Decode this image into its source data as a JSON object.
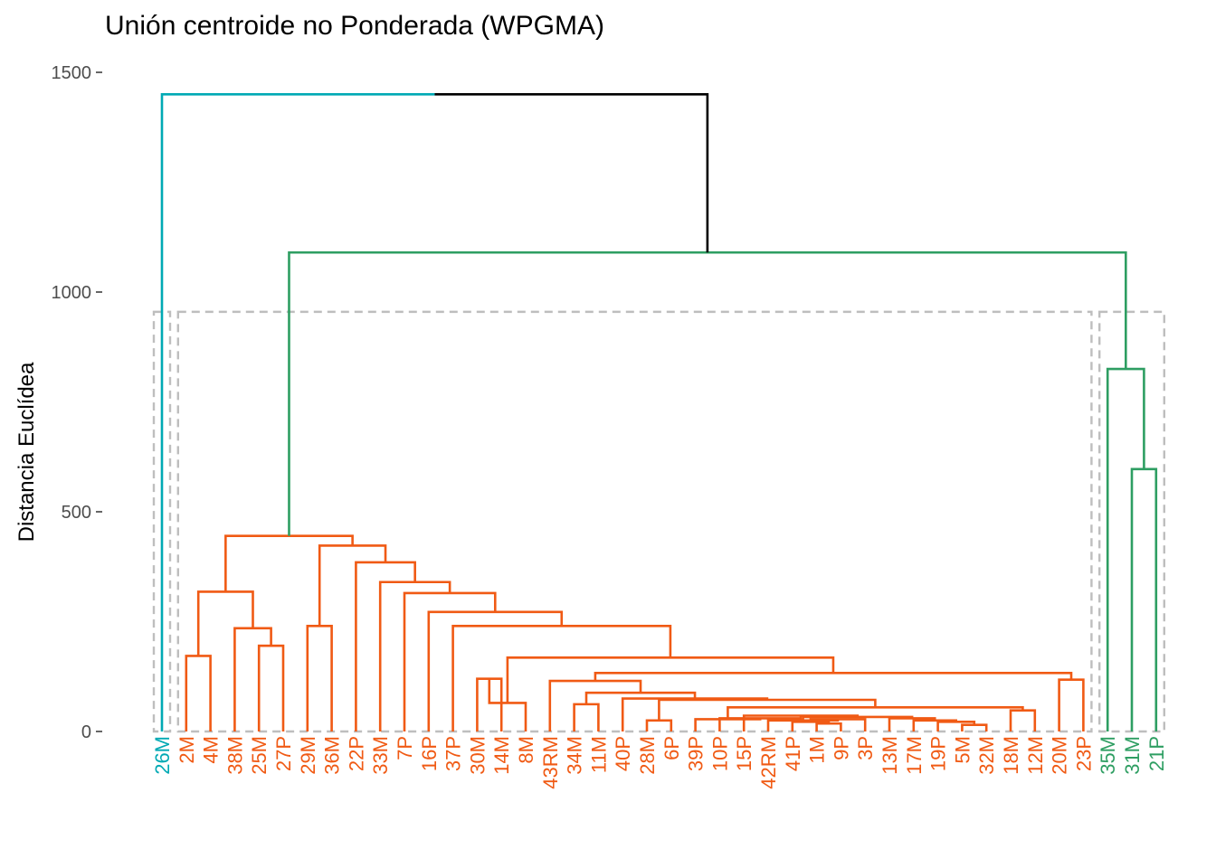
{
  "chart_data": {
    "type": "dendrogram",
    "title": "Unión centroide no Ponderada (WPGMA)",
    "ylabel": "Distancia Euclídea",
    "ylim": [
      0,
      1500
    ],
    "yticks": [
      0,
      500,
      1000,
      1500
    ],
    "ytick_labels": [
      "0",
      "500",
      "1000",
      "1500"
    ],
    "cut_height": 955,
    "colors": {
      "cyan": "#00A9B4",
      "orange": "#F05A14",
      "green": "#2E9E62",
      "root": "#000000",
      "cut_box": "#BEBEBE"
    },
    "leaves": [
      {
        "label": "26M",
        "cluster": "cyan"
      },
      {
        "label": "2M",
        "cluster": "orange"
      },
      {
        "label": "4M",
        "cluster": "orange"
      },
      {
        "label": "38M",
        "cluster": "orange"
      },
      {
        "label": "25M",
        "cluster": "orange"
      },
      {
        "label": "27P",
        "cluster": "orange"
      },
      {
        "label": "29M",
        "cluster": "orange"
      },
      {
        "label": "36M",
        "cluster": "orange"
      },
      {
        "label": "22P",
        "cluster": "orange"
      },
      {
        "label": "33M",
        "cluster": "orange"
      },
      {
        "label": "7P",
        "cluster": "orange"
      },
      {
        "label": "16P",
        "cluster": "orange"
      },
      {
        "label": "37P",
        "cluster": "orange"
      },
      {
        "label": "30M",
        "cluster": "orange"
      },
      {
        "label": "14M",
        "cluster": "orange"
      },
      {
        "label": "8M",
        "cluster": "orange"
      },
      {
        "label": "43RM",
        "cluster": "orange"
      },
      {
        "label": "34M",
        "cluster": "orange"
      },
      {
        "label": "11M",
        "cluster": "orange"
      },
      {
        "label": "40P",
        "cluster": "orange"
      },
      {
        "label": "28M",
        "cluster": "orange"
      },
      {
        "label": "6P",
        "cluster": "orange"
      },
      {
        "label": "39P",
        "cluster": "orange"
      },
      {
        "label": "10P",
        "cluster": "orange"
      },
      {
        "label": "15P",
        "cluster": "orange"
      },
      {
        "label": "42RM",
        "cluster": "orange"
      },
      {
        "label": "41P",
        "cluster": "orange"
      },
      {
        "label": "1M",
        "cluster": "orange"
      },
      {
        "label": "9P",
        "cluster": "orange"
      },
      {
        "label": "3P",
        "cluster": "orange"
      },
      {
        "label": "13M",
        "cluster": "orange"
      },
      {
        "label": "17M",
        "cluster": "orange"
      },
      {
        "label": "19P",
        "cluster": "orange"
      },
      {
        "label": "5M",
        "cluster": "orange"
      },
      {
        "label": "32M",
        "cluster": "orange"
      },
      {
        "label": "18M",
        "cluster": "orange"
      },
      {
        "label": "12M",
        "cluster": "orange"
      },
      {
        "label": "20M",
        "cluster": "orange"
      },
      {
        "label": "23P",
        "cluster": "orange"
      },
      {
        "label": "35M",
        "cluster": "green"
      },
      {
        "label": "31M",
        "cluster": "green"
      },
      {
        "label": "21P",
        "cluster": "green"
      }
    ],
    "merges": [
      {
        "a": "2M",
        "b": "4M",
        "height": 172,
        "color": "orange"
      },
      {
        "a": "25M",
        "b": "27P",
        "height": 195,
        "color": "orange"
      },
      {
        "a": "38M",
        "b": "m2",
        "height": 235,
        "color": "orange"
      },
      {
        "a": "m1",
        "b": "m3",
        "height": 318,
        "color": "orange"
      },
      {
        "a": "29M",
        "b": "36M",
        "height": 240,
        "color": "orange"
      },
      {
        "a": "30M",
        "b": "14M",
        "height": 120,
        "color": "orange"
      },
      {
        "a": "8M",
        "b": "m6",
        "height": 65,
        "color": "orange"
      },
      {
        "a": "34M",
        "b": "11M",
        "height": 62,
        "color": "orange"
      },
      {
        "a": "28M",
        "b": "6P",
        "height": 25,
        "color": "orange"
      },
      {
        "a": "5M",
        "b": "32M",
        "height": 15,
        "color": "orange"
      },
      {
        "a": "19P",
        "b": "m10",
        "height": 22,
        "color": "orange"
      },
      {
        "a": "17M",
        "b": "m11",
        "height": 25,
        "color": "orange"
      },
      {
        "a": "13M",
        "b": "m12",
        "height": 30,
        "color": "orange"
      },
      {
        "a": "1M",
        "b": "9P",
        "height": 18,
        "color": "orange"
      },
      {
        "a": "41P",
        "b": "m14",
        "height": 22,
        "color": "orange"
      },
      {
        "a": "m15",
        "b": "3P",
        "height": 28,
        "color": "orange"
      },
      {
        "a": "42RM",
        "b": "m16",
        "height": 25,
        "color": "orange"
      },
      {
        "a": "m17",
        "b": "m13",
        "height": 33,
        "color": "orange"
      },
      {
        "a": "15P",
        "b": "m18",
        "height": 36,
        "color": "orange"
      },
      {
        "a": "10P",
        "b": "m19",
        "height": 30,
        "color": "orange"
      },
      {
        "a": "39P",
        "b": "m20",
        "height": 28,
        "color": "orange"
      },
      {
        "a": "18M",
        "b": "12M",
        "height": 48,
        "color": "orange"
      },
      {
        "a": "m21",
        "b": "m22",
        "height": 55,
        "color": "orange"
      },
      {
        "a": "m23",
        "b": "m9",
        "height": 72,
        "color": "orange"
      },
      {
        "a": "40P",
        "b": "m24",
        "height": 75,
        "color": "orange"
      },
      {
        "a": "m8",
        "b": "m25",
        "height": 88,
        "color": "orange"
      },
      {
        "a": "43RM",
        "b": "m26",
        "height": 115,
        "color": "orange"
      },
      {
        "a": "20M",
        "b": "23P",
        "height": 118,
        "color": "orange"
      },
      {
        "a": "m27",
        "b": "m28",
        "height": 133,
        "color": "orange"
      },
      {
        "a": "m7",
        "b": "m29",
        "height": 168,
        "color": "orange"
      },
      {
        "a": "37P",
        "b": "m30",
        "height": 240,
        "color": "orange"
      },
      {
        "a": "16P",
        "b": "m31",
        "height": 272,
        "color": "orange"
      },
      {
        "a": "7P",
        "b": "m32",
        "height": 315,
        "color": "orange"
      },
      {
        "a": "33M",
        "b": "m33",
        "height": 340,
        "color": "orange"
      },
      {
        "a": "22P",
        "b": "m34",
        "height": 385,
        "color": "orange"
      },
      {
        "a": "m5",
        "b": "m35",
        "height": 423,
        "color": "orange"
      },
      {
        "a": "m4",
        "b": "m36",
        "height": 445,
        "color": "orange"
      },
      {
        "a": "31M",
        "b": "21P",
        "height": 597,
        "color": "green"
      },
      {
        "a": "35M",
        "b": "m38",
        "height": 825,
        "color": "green"
      },
      {
        "a": "m37",
        "b": "m39",
        "height": 1090,
        "color": "green"
      },
      {
        "a": "26M",
        "b": "m40",
        "height": 1450,
        "color": "root"
      }
    ]
  }
}
